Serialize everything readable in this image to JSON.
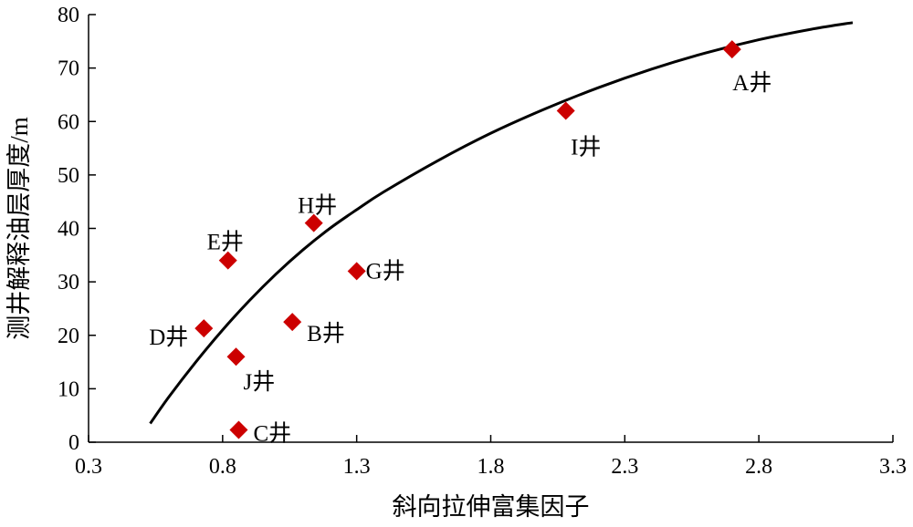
{
  "chart_data": {
    "type": "scatter",
    "title": "",
    "xlabel": "斜向拉伸富集因子",
    "ylabel": "测井解释油层厚度/m",
    "xlim": [
      0.3,
      3.3
    ],
    "ylim": [
      0,
      80
    ],
    "xticks": [
      "0.3",
      "0.8",
      "1.3",
      "1.8",
      "2.3",
      "2.8",
      "3.3"
    ],
    "yticks": [
      "0",
      "10",
      "20",
      "30",
      "40",
      "50",
      "60",
      "70",
      "80"
    ],
    "grid": false,
    "marker_color": "#cc0000",
    "curve_color": "#000000",
    "points": [
      {
        "label": "A井",
        "x": 2.7,
        "y": 73.5
      },
      {
        "label": "I井",
        "x": 2.08,
        "y": 62.0
      },
      {
        "label": "H井",
        "x": 1.14,
        "y": 41.0
      },
      {
        "label": "E井",
        "x": 0.82,
        "y": 34.0
      },
      {
        "label": "G井",
        "x": 1.3,
        "y": 32.0
      },
      {
        "label": "B井",
        "x": 1.06,
        "y": 22.5
      },
      {
        "label": "D井",
        "x": 0.73,
        "y": 21.3
      },
      {
        "label": "J井",
        "x": 0.85,
        "y": 16.0
      },
      {
        "label": "C井",
        "x": 0.86,
        "y": 2.3
      }
    ],
    "trend_curve": {
      "x": [
        0.53,
        0.6,
        0.7,
        0.8,
        0.9,
        1.0,
        1.1,
        1.2,
        1.3,
        1.4,
        1.6,
        1.8,
        2.0,
        2.2,
        2.4,
        2.6,
        2.8,
        3.0,
        3.15
      ],
      "y": [
        3.5,
        8.5,
        15.0,
        21.0,
        26.5,
        31.5,
        36.0,
        40.0,
        43.5,
        46.8,
        52.6,
        57.8,
        62.3,
        66.3,
        69.8,
        72.8,
        75.3,
        77.3,
        78.5
      ]
    }
  }
}
